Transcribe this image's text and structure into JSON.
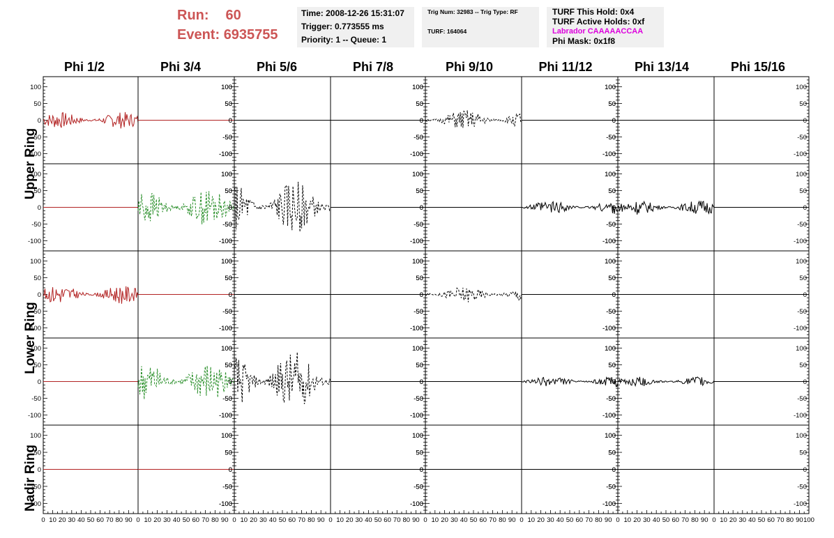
{
  "header": {
    "run_label": "Run:",
    "run_value": "60",
    "event_label": "Event:",
    "event_value": "6935755"
  },
  "info_box_1": {
    "time": "Time: 2008-12-26 15:31:07",
    "trigger": "Trigger: 0.773555 ms",
    "priority": "Priority: 1 -- Queue: 1"
  },
  "info_box_2": {
    "trig": "Trig Num: 32983 -- Trig Type: RF",
    "turf": "TURF: 164064"
  },
  "info_box_3": {
    "hold": "TURF This Hold: 0x4",
    "active": "TURF Active Holds: 0xf",
    "labrador": "Labrador CAAAAACCAA",
    "mask": "Phi Mask: 0x1f8"
  },
  "colors": {
    "header_red": "#cc5555",
    "trace_red": "#b22222",
    "trace_green": "#228b22",
    "trace_black": "#000000",
    "labrador_magenta": "#dd00dd"
  },
  "chart_data": {
    "type": "line",
    "columns": [
      "Phi 1/2",
      "Phi 3/4",
      "Phi 5/6",
      "Phi 7/8",
      "Phi 9/10",
      "Phi 11/12",
      "Phi 13/14",
      "Phi 15/16"
    ],
    "rows": [
      "Upper Ring",
      "Lower Ring",
      "Nadir Ring"
    ],
    "row_labels": [
      "Upper Ring",
      "Lower Ring",
      "Nadir Ring"
    ],
    "ylim": [
      -130,
      130
    ],
    "yticks": [
      -100,
      -50,
      0,
      50,
      100
    ],
    "xlim": [
      0,
      100
    ],
    "xticks": [
      0,
      10,
      20,
      30,
      40,
      50,
      60,
      70,
      80,
      90,
      100
    ],
    "panels": [
      {
        "row": 0,
        "col": 0,
        "color": "red",
        "style": "solid",
        "amp": 25,
        "side": "left"
      },
      {
        "row": 0,
        "col": 1,
        "color": "red",
        "style": "solid",
        "amp": 0,
        "side": "right"
      },
      {
        "row": 0,
        "col": 2,
        "color": "black",
        "style": "solid",
        "amp": 0,
        "side": "left"
      },
      {
        "row": 0,
        "col": 3,
        "color": "black",
        "style": "solid",
        "amp": 0,
        "side": "right"
      },
      {
        "row": 0,
        "col": 4,
        "color": "black",
        "style": "dashed",
        "amp": 30,
        "side": "left"
      },
      {
        "row": 0,
        "col": 5,
        "color": "black",
        "style": "solid",
        "amp": 0,
        "side": "right"
      },
      {
        "row": 0,
        "col": 6,
        "color": "black",
        "style": "solid",
        "amp": 0,
        "side": "left"
      },
      {
        "row": 0,
        "col": 7,
        "color": "black",
        "style": "solid",
        "amp": 0,
        "side": "right"
      },
      {
        "row": 1,
        "col": 0,
        "color": "red",
        "style": "solid",
        "amp": 0,
        "side": "left"
      },
      {
        "row": 1,
        "col": 1,
        "color": "green",
        "style": "dashed",
        "amp": 55,
        "side": "right"
      },
      {
        "row": 1,
        "col": 2,
        "color": "black",
        "style": "dashed",
        "amp": 80,
        "side": "left"
      },
      {
        "row": 1,
        "col": 3,
        "color": "black",
        "style": "solid",
        "amp": 0,
        "side": "right"
      },
      {
        "row": 1,
        "col": 4,
        "color": "black",
        "style": "solid",
        "amp": 0,
        "side": "left"
      },
      {
        "row": 1,
        "col": 5,
        "color": "black",
        "style": "solid",
        "amp": 20,
        "side": "right"
      },
      {
        "row": 1,
        "col": 6,
        "color": "black",
        "style": "solid",
        "amp": 22,
        "side": "left"
      },
      {
        "row": 1,
        "col": 7,
        "color": "black",
        "style": "solid",
        "amp": 0,
        "side": "right"
      },
      {
        "row": 2,
        "col": 0,
        "color": "red",
        "style": "solid",
        "amp": 28,
        "side": "left"
      },
      {
        "row": 2,
        "col": 1,
        "color": "red",
        "style": "solid",
        "amp": 0,
        "side": "right"
      },
      {
        "row": 2,
        "col": 2,
        "color": "black",
        "style": "solid",
        "amp": 0,
        "side": "left"
      },
      {
        "row": 2,
        "col": 3,
        "color": "black",
        "style": "solid",
        "amp": 0,
        "side": "right"
      },
      {
        "row": 2,
        "col": 4,
        "color": "black",
        "style": "dashed",
        "amp": 25,
        "side": "left"
      },
      {
        "row": 2,
        "col": 5,
        "color": "black",
        "style": "solid",
        "amp": 0,
        "side": "right"
      },
      {
        "row": 2,
        "col": 6,
        "color": "black",
        "style": "solid",
        "amp": 0,
        "side": "left"
      },
      {
        "row": 2,
        "col": 7,
        "color": "black",
        "style": "solid",
        "amp": 0,
        "side": "right"
      },
      {
        "row": 3,
        "col": 0,
        "color": "red",
        "style": "solid",
        "amp": 0,
        "side": "left"
      },
      {
        "row": 3,
        "col": 1,
        "color": "green",
        "style": "dashed",
        "amp": 60,
        "side": "right"
      },
      {
        "row": 3,
        "col": 2,
        "color": "black",
        "style": "dashed",
        "amp": 90,
        "side": "left"
      },
      {
        "row": 3,
        "col": 3,
        "color": "black",
        "style": "solid",
        "amp": 0,
        "side": "right"
      },
      {
        "row": 3,
        "col": 4,
        "color": "black",
        "style": "solid",
        "amp": 0,
        "side": "left"
      },
      {
        "row": 3,
        "col": 5,
        "color": "black",
        "style": "solid",
        "amp": 15,
        "side": "right"
      },
      {
        "row": 3,
        "col": 6,
        "color": "black",
        "style": "solid",
        "amp": 15,
        "side": "left"
      },
      {
        "row": 3,
        "col": 7,
        "color": "black",
        "style": "solid",
        "amp": 0,
        "side": "right"
      },
      {
        "row": 4,
        "col": 0,
        "color": "red",
        "style": "solid",
        "amp": 0,
        "side": "left"
      },
      {
        "row": 4,
        "col": 1,
        "color": "red",
        "style": "solid",
        "amp": 0,
        "side": "right"
      },
      {
        "row": 4,
        "col": 2,
        "color": "black",
        "style": "solid",
        "amp": 0,
        "side": "left"
      },
      {
        "row": 4,
        "col": 3,
        "color": "black",
        "style": "solid",
        "amp": 0,
        "side": "right"
      },
      {
        "row": 4,
        "col": 4,
        "color": "black",
        "style": "solid",
        "amp": 0,
        "side": "left"
      },
      {
        "row": 4,
        "col": 5,
        "color": "black",
        "style": "solid",
        "amp": 0,
        "side": "right"
      },
      {
        "row": 4,
        "col": 6,
        "color": "black",
        "style": "solid",
        "amp": 0,
        "side": "left"
      },
      {
        "row": 4,
        "col": 7,
        "color": "black",
        "style": "solid",
        "amp": 0,
        "side": "right"
      }
    ]
  }
}
